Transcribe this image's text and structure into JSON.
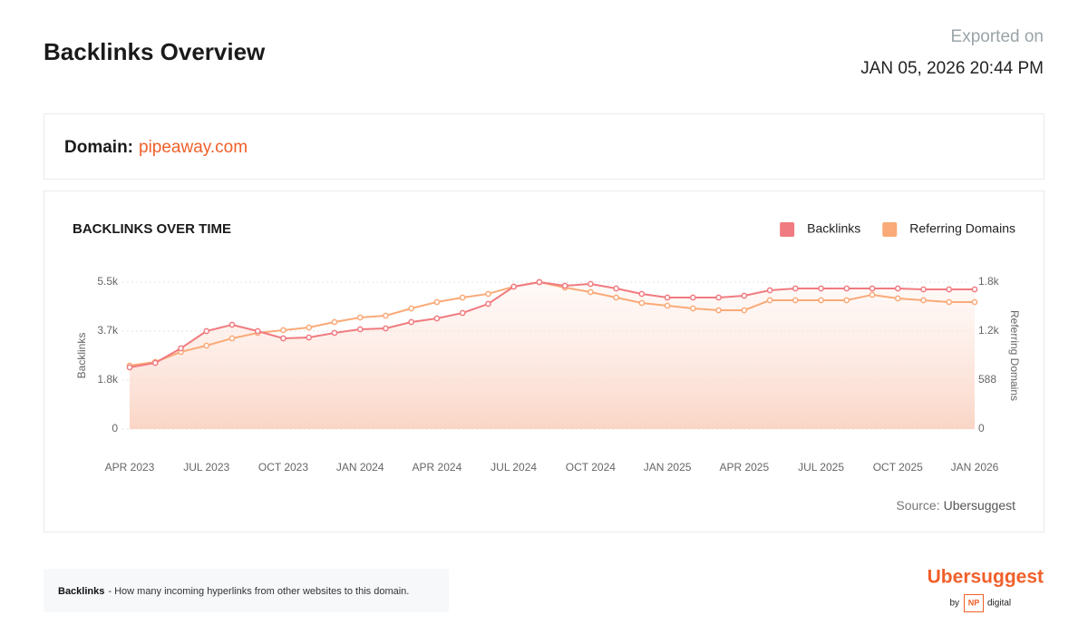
{
  "header": {
    "title": "Backlinks Overview",
    "exported_label": "Exported on",
    "exported_date": "JAN 05, 2026 20:44 PM"
  },
  "domain": {
    "label": "Domain:",
    "value": "pipeaway.com"
  },
  "chart_data": {
    "type": "line",
    "title": "BACKLINKS OVER TIME",
    "y_label": "Backlinks",
    "y2_label": "Referring Domains",
    "categories": [
      "APR 2023",
      null,
      null,
      "JUL 2023",
      null,
      null,
      "OCT 2023",
      null,
      null,
      "JAN 2024",
      null,
      null,
      "APR 2024",
      null,
      null,
      "JUL 2024",
      null,
      null,
      "OCT 2024",
      null,
      null,
      "JAN 2025",
      null,
      null,
      "APR 2025",
      null,
      null,
      "JUL 2025",
      null,
      null,
      "OCT 2025",
      null,
      null,
      "JAN 2026"
    ],
    "series": [
      {
        "name": "Backlinks",
        "color": "#f07b80",
        "values": [
          2309,
          2478,
          3022,
          3667,
          3904,
          3667,
          3395,
          3429,
          3599,
          3735,
          3769,
          4006,
          4142,
          4346,
          4685,
          5330,
          5500,
          5364,
          5432,
          5262,
          5059,
          4923,
          4923,
          4923,
          4991,
          5194,
          5262,
          5262,
          5262,
          5262,
          5262,
          5228,
          5228,
          5228
        ]
      },
      {
        "name": "Referring Domains",
        "color": "#f9aa78",
        "axis": "y2",
        "values": [
          762,
          806,
          926,
          1002,
          1089,
          1154,
          1187,
          1220,
          1285,
          1339,
          1361,
          1448,
          1525,
          1579,
          1623,
          1710,
          1764,
          1699,
          1644,
          1579,
          1514,
          1481,
          1448,
          1426,
          1426,
          1546,
          1546,
          1546,
          1546,
          1612,
          1568,
          1546,
          1525,
          1525
        ]
      }
    ],
    "ylim": [
      0,
      5500
    ],
    "yticks": [
      0,
      {
        "value": 1833,
        "label": "1.8k"
      },
      {
        "value": 3667,
        "label": "3.7k"
      },
      {
        "value": 5500,
        "label": "5.5k"
      }
    ],
    "y2lim": [
      0,
      1764
    ],
    "y2ticks": [
      0,
      588,
      {
        "value": 1176,
        "label": "1.2k"
      },
      {
        "value": 1764,
        "label": "1.8k"
      }
    ],
    "grid": true,
    "legend": "top-right"
  },
  "source": {
    "label": "Source:",
    "value": "Ubersuggest"
  },
  "footnote": {
    "term": "Backlinks",
    "text": "- How many incoming hyperlinks from other websites to this domain."
  },
  "logo": {
    "name": "Ubersuggest",
    "by": "by",
    "badge": "NP",
    "suffix": "digital"
  }
}
